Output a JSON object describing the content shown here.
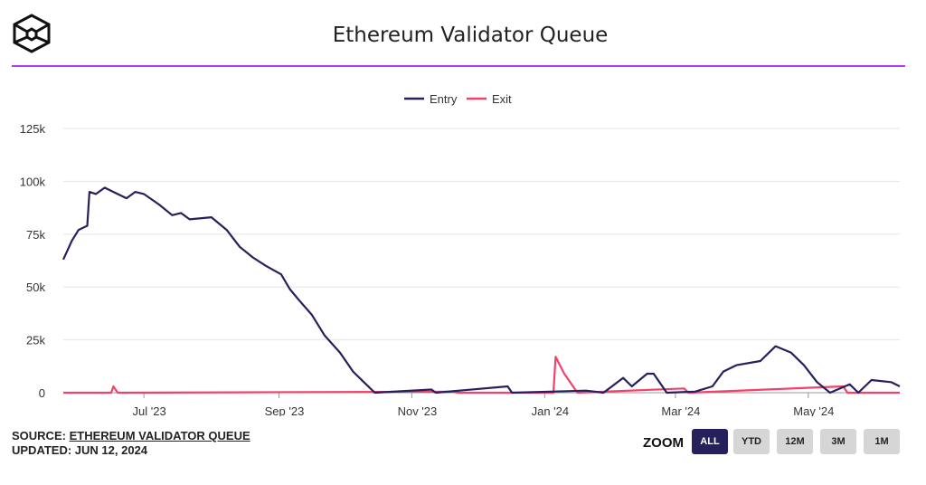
{
  "header": {
    "title": "Ethereum Validator Queue"
  },
  "footer": {
    "source_label": "SOURCE:",
    "source_link": "ETHEREUM VALIDATOR QUEUE",
    "updated": "UPDATED: JUN 12, 2024"
  },
  "zoom": {
    "label": "ZOOM",
    "options": [
      "ALL",
      "YTD",
      "12M",
      "3M",
      "1M"
    ],
    "selected": "ALL"
  },
  "colors": {
    "entry": "#26205c",
    "exit": "#f0426b",
    "accent": "#b03cf0"
  },
  "chart_data": {
    "type": "line",
    "title": "Ethereum Validator Queue",
    "xlabel": "",
    "ylabel": "",
    "x_range": [
      "2023-05-25",
      "2024-06-12"
    ],
    "ylim": [
      0,
      125000
    ],
    "yticks": [
      0,
      25000,
      50000,
      75000,
      100000,
      125000
    ],
    "ytick_labels": [
      "0",
      "25k",
      "50k",
      "75k",
      "100k",
      "125k"
    ],
    "xticks": [
      "2023-07-01",
      "2023-09-01",
      "2023-11-01",
      "2024-01-01",
      "2024-03-01",
      "2024-05-01"
    ],
    "xtick_labels": [
      "Jul '23",
      "Sep '23",
      "Nov '23",
      "Jan '24",
      "Mar '24",
      "May '24"
    ],
    "legend": "top-center",
    "grid": true,
    "series": [
      {
        "name": "Entry",
        "points": [
          [
            "2023-05-25",
            63000
          ],
          [
            "2023-05-29",
            72000
          ],
          [
            "2023-06-01",
            77000
          ],
          [
            "2023-06-05",
            79000
          ],
          [
            "2023-06-06",
            95000
          ],
          [
            "2023-06-09",
            94000
          ],
          [
            "2023-06-13",
            97000
          ],
          [
            "2023-06-17",
            95000
          ],
          [
            "2023-06-23",
            92000
          ],
          [
            "2023-06-27",
            95000
          ],
          [
            "2023-07-01",
            94000
          ],
          [
            "2023-07-08",
            89000
          ],
          [
            "2023-07-14",
            84000
          ],
          [
            "2023-07-18",
            85000
          ],
          [
            "2023-07-22",
            82000
          ],
          [
            "2023-08-01",
            83000
          ],
          [
            "2023-08-08",
            77000
          ],
          [
            "2023-08-14",
            69000
          ],
          [
            "2023-08-20",
            64000
          ],
          [
            "2023-08-26",
            60000
          ],
          [
            "2023-09-02",
            56000
          ],
          [
            "2023-09-06",
            49000
          ],
          [
            "2023-09-10",
            44000
          ],
          [
            "2023-09-16",
            37000
          ],
          [
            "2023-09-22",
            27000
          ],
          [
            "2023-09-29",
            19000
          ],
          [
            "2023-10-05",
            10000
          ],
          [
            "2023-10-11",
            4000
          ],
          [
            "2023-10-15",
            0
          ],
          [
            "2023-11-10",
            1500
          ],
          [
            "2023-11-12",
            0
          ],
          [
            "2023-12-15",
            3000
          ],
          [
            "2023-12-17",
            0
          ],
          [
            "2024-01-20",
            1000
          ],
          [
            "2024-01-28",
            0
          ],
          [
            "2024-02-06",
            7000
          ],
          [
            "2024-02-10",
            3000
          ],
          [
            "2024-02-17",
            9000
          ],
          [
            "2024-02-20",
            9000
          ],
          [
            "2024-02-26",
            0
          ],
          [
            "2024-03-10",
            500
          ],
          [
            "2024-03-18",
            3000
          ],
          [
            "2024-03-23",
            10000
          ],
          [
            "2024-03-29",
            13000
          ],
          [
            "2024-04-09",
            15000
          ],
          [
            "2024-04-16",
            22000
          ],
          [
            "2024-04-23",
            19000
          ],
          [
            "2024-04-29",
            13000
          ],
          [
            "2024-05-05",
            5000
          ],
          [
            "2024-05-11",
            0
          ],
          [
            "2024-05-20",
            4000
          ],
          [
            "2024-05-24",
            0
          ],
          [
            "2024-05-30",
            6000
          ],
          [
            "2024-06-08",
            5000
          ],
          [
            "2024-06-12",
            3000
          ]
        ]
      },
      {
        "name": "Exit",
        "points": [
          [
            "2023-05-25",
            0
          ],
          [
            "2023-06-16",
            0
          ],
          [
            "2023-06-17",
            3000
          ],
          [
            "2023-06-19",
            0
          ],
          [
            "2023-11-20",
            500
          ],
          [
            "2023-11-22",
            0
          ],
          [
            "2024-01-05",
            0
          ],
          [
            "2024-01-06",
            17000
          ],
          [
            "2024-01-10",
            9000
          ],
          [
            "2024-01-14",
            3000
          ],
          [
            "2024-01-16",
            0
          ],
          [
            "2024-03-05",
            2000
          ],
          [
            "2024-03-07",
            0
          ],
          [
            "2024-05-17",
            3000
          ],
          [
            "2024-05-19",
            0
          ],
          [
            "2024-06-12",
            0
          ]
        ]
      }
    ]
  }
}
